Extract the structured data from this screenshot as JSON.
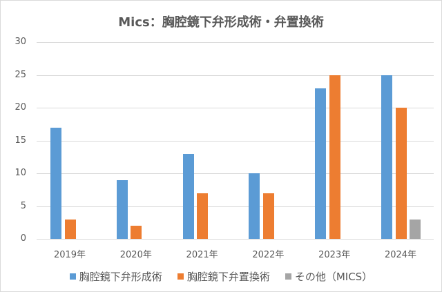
{
  "chart_data": {
    "type": "bar",
    "title": "Mics：胸腔鏡下弁形成術・弁置換術",
    "xlabel": "",
    "ylabel": "",
    "ylim": [
      0,
      30
    ],
    "yticks": [
      "0",
      "5",
      "10",
      "15",
      "20",
      "25",
      "30"
    ],
    "grid": true,
    "legend_position": "bottom",
    "categories": [
      "2019年",
      "2020年",
      "2021年",
      "2022年",
      "2023年",
      "2024年"
    ],
    "series": [
      {
        "name": "胸腔鏡下弁形成術",
        "color": "#5b9bd5",
        "values": [
          17,
          9,
          13,
          10,
          23,
          25
        ]
      },
      {
        "name": "胸腔鏡下弁置換術",
        "color": "#ed7d31",
        "values": [
          3,
          2,
          7,
          7,
          25,
          20
        ]
      },
      {
        "name": "その他（MICS）",
        "color": "#a5a5a5",
        "values": [
          0,
          0,
          0,
          0,
          0,
          3
        ]
      }
    ]
  }
}
